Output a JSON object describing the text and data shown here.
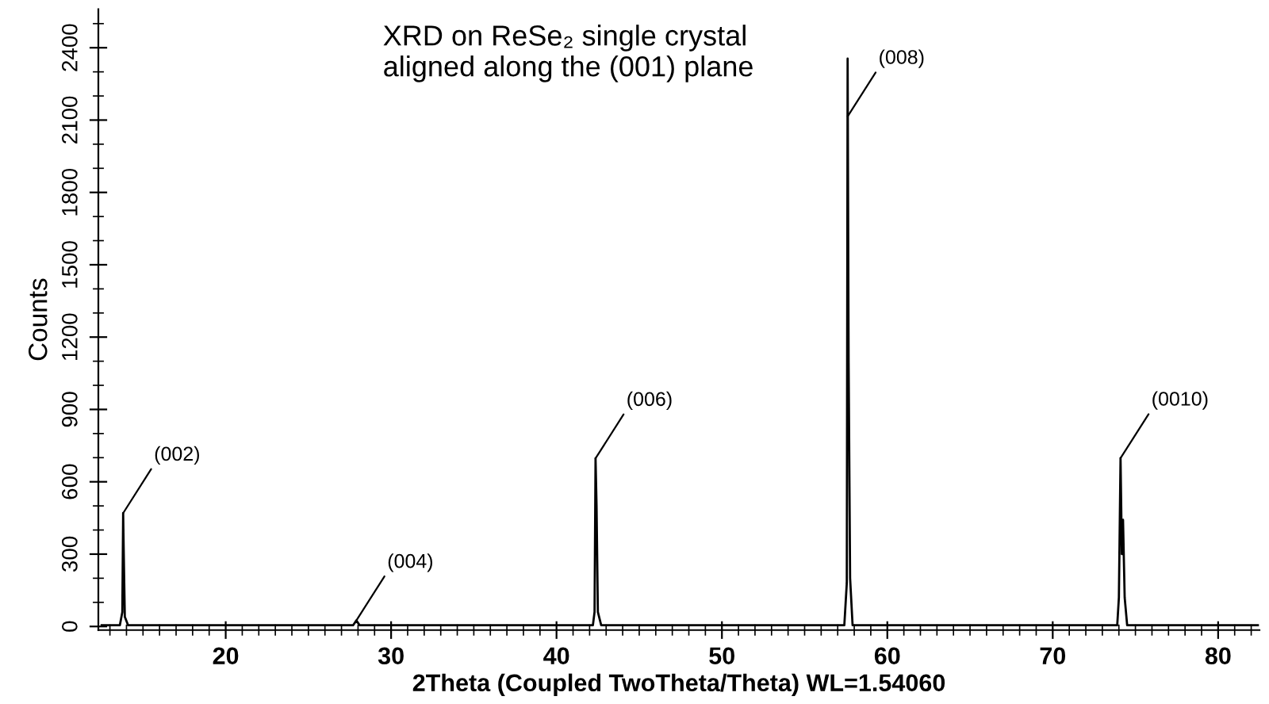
{
  "chart_data": {
    "type": "line",
    "title": "XRD on ReSe₂ single crystal\naligned along the (001) plane",
    "xlabel": "2Theta (Coupled TwoTheta/Theta) WL=1.54060",
    "ylabel": "Counts",
    "series": [
      {
        "color": "#000000",
        "x": [
          12.5,
          13.6,
          13.75,
          13.8,
          13.83,
          13.9,
          14.1,
          27.7,
          27.9,
          28.1,
          42.2,
          42.3,
          42.36,
          42.42,
          42.5,
          42.7,
          57.4,
          57.55,
          57.6,
          57.66,
          57.75,
          57.9,
          73.9,
          74.0,
          74.1,
          74.18,
          74.25,
          74.35,
          74.5,
          82.4
        ],
        "values": [
          5,
          5,
          60,
          470,
          330,
          40,
          5,
          5,
          25,
          5,
          5,
          60,
          697,
          500,
          60,
          5,
          5,
          180,
          2355,
          1094,
          200,
          5,
          5,
          120,
          698,
          300,
          442,
          120,
          5,
          5
        ]
      }
    ],
    "xlim": [
      12.3,
      82.5
    ],
    "xticks": [
      20,
      30,
      40,
      50,
      60,
      70,
      80
    ],
    "ylim": [
      -15,
      2560
    ],
    "yticks": [
      0,
      300,
      600,
      900,
      1200,
      1500,
      1800,
      2100,
      2400
    ],
    "grid": false,
    "legend": false,
    "marker": "none",
    "line_style": "solid",
    "annotations": [
      {
        "text": "(002)",
        "x": 13.8,
        "y": 470
      },
      {
        "text": "(004)",
        "x": 27.9,
        "y": 25
      },
      {
        "text": "(006)",
        "x": 42.36,
        "y": 697
      },
      {
        "text": "(008)",
        "x": 57.6,
        "y": 2115
      },
      {
        "text": "(0010)",
        "x": 74.1,
        "y": 698
      }
    ]
  }
}
